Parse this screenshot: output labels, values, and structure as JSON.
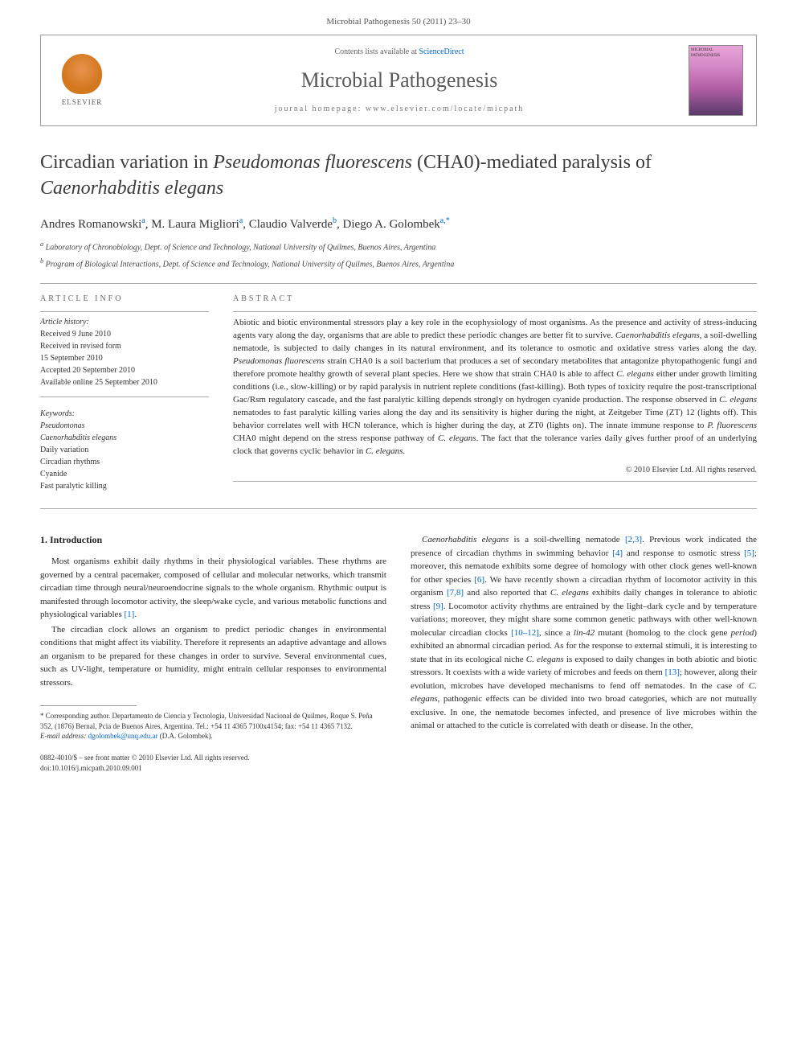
{
  "citation": "Microbial Pathogenesis 50 (2011) 23–30",
  "header": {
    "contents_prefix": "Contents lists available at ",
    "contents_link": "ScienceDirect",
    "journal_name": "Microbial Pathogenesis",
    "homepage_prefix": "journal homepage: ",
    "homepage_url": "www.elsevier.com/locate/micpath",
    "publisher": "ELSEVIER"
  },
  "title_parts": {
    "pre": "Circadian variation in ",
    "italic1": "Pseudomonas fluorescens",
    "mid": " (CHA0)-mediated paralysis of ",
    "italic2": "Caenorhabditis elegans"
  },
  "authors_html": "Andres Romanowski",
  "authors": [
    {
      "name": "Andres Romanowski",
      "sup": "a"
    },
    {
      "name": "M. Laura Migliori",
      "sup": "a"
    },
    {
      "name": "Claudio Valverde",
      "sup": "b"
    },
    {
      "name": "Diego A. Golombek",
      "sup": "a,*"
    }
  ],
  "affiliations": [
    {
      "sup": "a",
      "text": "Laboratory of Chronobiology, Dept. of Science and Technology, National University of Quilmes, Buenos Aires, Argentina"
    },
    {
      "sup": "b",
      "text": "Program of Biological Interactions, Dept. of Science and Technology, National University of Quilmes, Buenos Aires, Argentina"
    }
  ],
  "article_info_label": "ARTICLE INFO",
  "abstract_label": "ABSTRACT",
  "history": {
    "label": "Article history:",
    "items": [
      "Received 9 June 2010",
      "Received in revised form",
      "15 September 2010",
      "Accepted 20 September 2010",
      "Available online 25 September 2010"
    ]
  },
  "keywords": {
    "label": "Keywords:",
    "items": [
      {
        "text": "Pseudomonas",
        "italic": true
      },
      {
        "text": "Caenorhabditis elegans",
        "italic": true
      },
      {
        "text": "Daily variation",
        "italic": false
      },
      {
        "text": "Circadian rhythms",
        "italic": false
      },
      {
        "text": "Cyanide",
        "italic": false
      },
      {
        "text": "Fast paralytic killing",
        "italic": false
      }
    ]
  },
  "abstract": "Abiotic and biotic environmental stressors play a key role in the ecophysiology of most organisms. As the presence and activity of stress-inducing agents vary along the day, organisms that are able to predict these periodic changes are better fit to survive. <span class=\"italic\">Caenorhabditis elegans</span>, a soil-dwelling nematode, is subjected to daily changes in its natural environment, and its tolerance to osmotic and oxidative stress varies along the day. <span class=\"italic\">Pseudomonas fluorescens</span> strain CHA0 is a soil bacterium that produces a set of secondary metabolites that antagonize phytopathogenic fungi and therefore promote healthy growth of several plant species. Here we show that strain CHA0 is able to affect <span class=\"italic\">C. elegans</span> either under growth limiting conditions (i.e., slow-killing) or by rapid paralysis in nutrient replete conditions (fast-killing). Both types of toxicity require the post-transcriptional Gac/Rsm regulatory cascade, and the fast paralytic killing depends strongly on hydrogen cyanide production. The response observed in <span class=\"italic\">C. elegans</span> nematodes to fast paralytic killing varies along the day and its sensitivity is higher during the night, at Zeitgeber Time (ZT) 12 (lights off). This behavior correlates well with HCN tolerance, which is higher during the day, at ZT0 (lights on). The innate immune response to <span class=\"italic\">P. fluorescens</span> CHA0 might depend on the stress response pathway of <span class=\"italic\">C. elegans</span>. The fact that the tolerance varies daily gives further proof of an underlying clock that governs cyclic behavior in <span class=\"italic\">C. elegans</span>.",
  "copyright": "© 2010 Elsevier Ltd. All rights reserved.",
  "intro_heading": "1. Introduction",
  "intro_paras": [
    "Most organisms exhibit daily rhythms in their physiological variables. These rhythms are governed by a central pacemaker, composed of cellular and molecular networks, which transmit circadian time through neural/neuroendocrine signals to the whole organism. Rhythmic output is manifested through locomotor activity, the sleep/wake cycle, and various metabolic functions and physiological variables <a>[1]</a>.",
    "The circadian clock allows an organism to predict periodic changes in environmental conditions that might affect its viability. Therefore it represents an adaptive advantage and allows an organism to be prepared for these changes in order to survive. Several environmental cues, such as UV-light, temperature or humidity, might entrain cellular responses to environmental stressors."
  ],
  "col2_para": "<span class=\"italic\">Caenorhabditis elegans</span> is a soil-dwelling nematode <a>[2,3]</a>. Previous work indicated the presence of circadian rhythms in swimming behavior <a>[4]</a> and response to osmotic stress <a>[5]</a>; moreover, this nematode exhibits some degree of homology with other clock genes well-known for other species <a>[6]</a>. We have recently shown a circadian rhythm of locomotor activity in this organism <a>[7,8]</a> and also reported that <span class=\"italic\">C. elegans</span> exhibits daily changes in tolerance to abiotic stress <a>[9]</a>. Locomotor activity rhythms are entrained by the light–dark cycle and by temperature variations; moreover, they might share some common genetic pathways with other well-known molecular circadian clocks <a>[10–12]</a>, since a <span class=\"italic\">lin-42</span> mutant (homolog to the clock gene <span class=\"italic\">period</span>) exhibited an abnormal circadian period. As for the response to external stimuli, it is interesting to state that in its ecological niche <span class=\"italic\">C. elegans</span> is exposed to daily changes in both abiotic and biotic stressors. It coexists with a wide variety of microbes and feeds on them <a>[13]</a>; however, along their evolution, microbes have developed mechanisms to fend off nematodes. In the case of <span class=\"italic\">C. elegans</span>, pathogenic effects can be divided into two broad categories, which are not mutually exclusive. In one, the nematode becomes infected, and presence of live microbes within the animal or attached to the cuticle is correlated with death or disease. In the other,",
  "footnote": {
    "corr": "* Corresponding author. Departamento de Ciencia y Tecnología, Universidad Nacional de Quilmes, Roque S. Peña 352, (1876) Bernal, Pcia de Buenos Aires, Argentina. Tel.: +54 11 4365 7100x4154; fax: +54 11 4365 7132.",
    "email_label": "E-mail address:",
    "email": "dgolombek@unq.edu.ar",
    "email_who": "(D.A. Golombek)."
  },
  "footer": {
    "issn": "0882-4010/$ – see front matter © 2010 Elsevier Ltd. All rights reserved.",
    "doi": "doi:10.1016/j.micpath.2010.09.001"
  },
  "colors": {
    "link": "#0066cc",
    "text": "#2a2a2a",
    "border": "#999999",
    "heading": "#3a3a3a"
  }
}
